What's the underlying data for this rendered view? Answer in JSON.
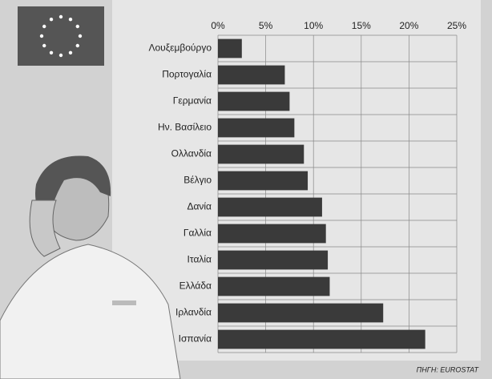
{
  "chart_data": {
    "type": "bar",
    "orientation": "horizontal",
    "categories": [
      "Λουξεμβούργο",
      "Πορτογαλία",
      "Γερμανία",
      "Ην. Βασίλειο",
      "Ολλανδία",
      "Βέλγιο",
      "Δανία",
      "Γαλλία",
      "Ιταλία",
      "Ελλάδα",
      "Ιρλανδία",
      "Ισπανία"
    ],
    "values": [
      2.5,
      7.0,
      7.5,
      8.0,
      9.0,
      9.4,
      10.9,
      11.3,
      11.5,
      11.7,
      17.3,
      21.7
    ],
    "color": "#3a3a3a",
    "xlim": [
      0,
      25
    ],
    "xticks": [
      {
        "value": 0,
        "label": "0%"
      },
      {
        "value": 5,
        "label": "5%"
      },
      {
        "value": 10,
        "label": "10%"
      },
      {
        "value": 15,
        "label": "15%"
      },
      {
        "value": 20,
        "label": "20%"
      },
      {
        "value": 25,
        "label": "25%"
      }
    ],
    "grid": true,
    "source": "ΠΗΓΗ: EUROSTAT"
  }
}
